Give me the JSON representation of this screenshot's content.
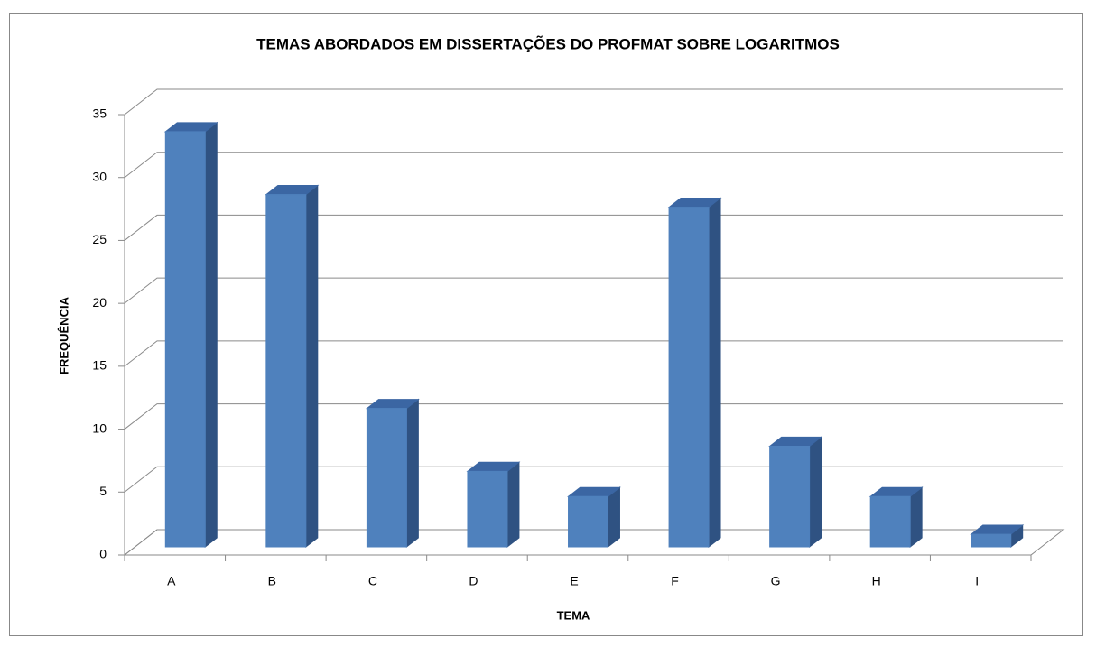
{
  "chart_data": {
    "type": "bar3d",
    "title": "TEMAS ABORDADOS EM DISSERTAÇÕES DO PROFMAT SOBRE LOGARITMOS",
    "x_label": "TEMA",
    "y_label": "FREQUÊNCIA",
    "categories": [
      "A",
      "B",
      "C",
      "D",
      "E",
      "F",
      "G",
      "H",
      "I"
    ],
    "values": [
      33,
      28,
      11,
      6,
      4,
      27,
      8,
      4,
      1
    ],
    "color": "#4f81bd",
    "ylim": [
      0,
      35
    ],
    "yticks": [
      0,
      5,
      10,
      15,
      20,
      25,
      30,
      35
    ],
    "grid": true
  }
}
